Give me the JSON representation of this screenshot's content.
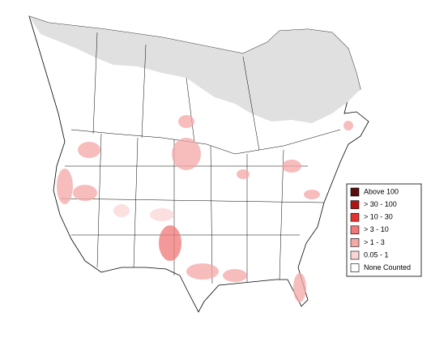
{
  "legend": {
    "items": [
      {
        "label": "Above 100",
        "color": "#5a0f0f"
      },
      {
        "label": "> 30 - 100",
        "color": "#b01515"
      },
      {
        "label": "> 10 - 30",
        "color": "#e23232"
      },
      {
        "label": "> 3 - 10",
        "color": "#f07878"
      },
      {
        "label": "> 1 - 3",
        "color": "#f5a8a8"
      },
      {
        "label": "0.05 - 1",
        "color": "#fbd5d5"
      },
      {
        "label": "None Counted",
        "color": "#ffffff"
      }
    ]
  }
}
